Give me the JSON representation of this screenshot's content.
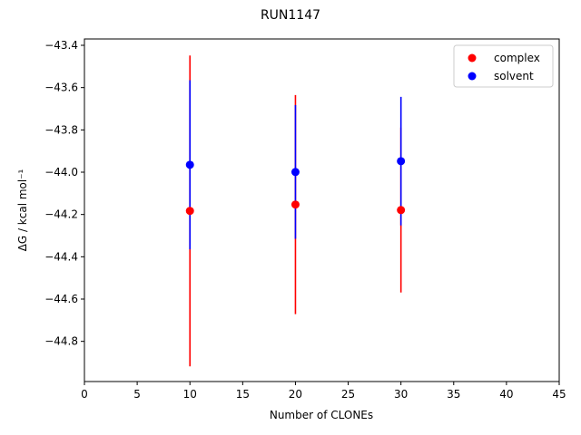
{
  "chart_data": {
    "type": "scatter",
    "title": "RUN1147",
    "xlabel": "Number of CLONEs",
    "ylabel": "ΔG / kcal mol⁻¹",
    "series": [
      {
        "name": "complex",
        "color": "#ff0000",
        "x": [
          10,
          20,
          30
        ],
        "values": [
          -44.183,
          -44.153,
          -44.179
        ],
        "errors": [
          0.735,
          0.518,
          0.39
        ]
      },
      {
        "name": "solvent",
        "color": "#0000ff",
        "x": [
          10,
          20,
          30
        ],
        "values": [
          -43.965,
          -43.999,
          -43.948
        ],
        "errors": [
          0.4,
          0.316,
          0.304
        ]
      }
    ],
    "xlim": [
      0,
      45
    ],
    "xticks": [
      0,
      5,
      10,
      15,
      20,
      25,
      30,
      35,
      40,
      45
    ],
    "ylim": [
      -44.99,
      -43.37
    ],
    "yticks": [
      {
        "value": -43.4,
        "label": "−43.4"
      },
      {
        "value": -43.6,
        "label": "−43.6"
      },
      {
        "value": -43.8,
        "label": "−43.8"
      },
      {
        "value": -44.0,
        "label": "−44.0"
      },
      {
        "value": -44.2,
        "label": "−44.2"
      },
      {
        "value": -44.4,
        "label": "−44.4"
      },
      {
        "value": -44.6,
        "label": "−44.6"
      },
      {
        "value": -44.8,
        "label": "−44.8"
      }
    ],
    "legend": "upper right"
  }
}
